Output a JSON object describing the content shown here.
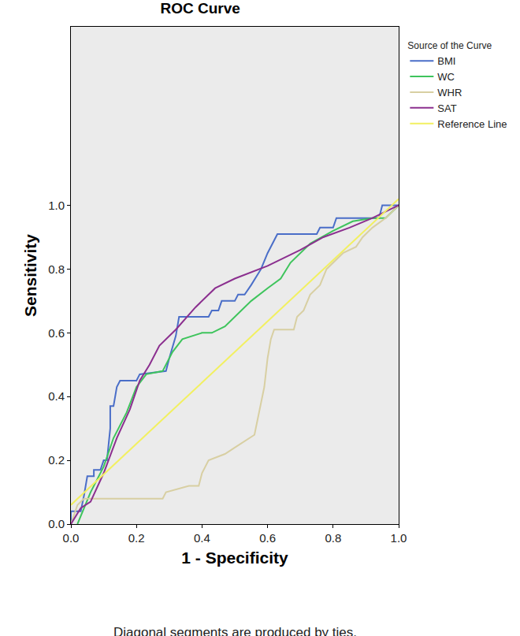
{
  "chart_data": {
    "type": "line",
    "title": "ROC Curve",
    "x_label": "1 - Specificity",
    "y_label": "Sensitivity",
    "legend_title": "Source of the Curve",
    "legend": "right",
    "grid": false,
    "xlim": [
      0,
      1
    ],
    "ylim": [
      0,
      1.56
    ],
    "xticks": [
      {
        "value": 0,
        "label": "0.0"
      },
      {
        "value": 0.2,
        "label": "0.2"
      },
      {
        "value": 0.4,
        "label": "0.4"
      },
      {
        "value": 0.6,
        "label": "0.6"
      },
      {
        "value": 0.8,
        "label": "0.8"
      },
      {
        "value": 1,
        "label": "1.0"
      }
    ],
    "yticks": [
      {
        "value": 0,
        "label": "0.0"
      },
      {
        "value": 0.2,
        "label": "0.2"
      },
      {
        "value": 0.4,
        "label": "0.4"
      },
      {
        "value": 0.6,
        "label": "0.6"
      },
      {
        "value": 0.8,
        "label": "0.8"
      },
      {
        "value": 1,
        "label": "1.0"
      }
    ],
    "annotations": [
      "Diagonal segments are produced by ties."
    ],
    "series": [
      {
        "name": "BMI",
        "color": "#4a6ec8",
        "line_style": "solid",
        "x": [
          0,
          0,
          0.03,
          0.04,
          0.05,
          0.07,
          0.07,
          0.09,
          0.1,
          0.11,
          0.12,
          0.12,
          0.13,
          0.14,
          0.15,
          0.2,
          0.21,
          0.29,
          0.3,
          0.32,
          0.33,
          0.42,
          0.43,
          0.45,
          0.46,
          0.5,
          0.51,
          0.53,
          0.55,
          0.58,
          0.6,
          0.62,
          0.63,
          0.75,
          0.76,
          0.8,
          0.81,
          0.94,
          0.95,
          1
        ],
        "values": [
          0,
          0.04,
          0.04,
          0.09,
          0.15,
          0.15,
          0.17,
          0.17,
          0.2,
          0.2,
          0.3,
          0.37,
          0.37,
          0.43,
          0.45,
          0.45,
          0.47,
          0.48,
          0.52,
          0.59,
          0.65,
          0.65,
          0.67,
          0.67,
          0.7,
          0.7,
          0.72,
          0.72,
          0.75,
          0.8,
          0.85,
          0.89,
          0.91,
          0.91,
          0.93,
          0.93,
          0.96,
          0.96,
          1,
          1
        ]
      },
      {
        "name": "WC",
        "color": "#3ec45c",
        "line_style": "solid",
        "x": [
          0.02,
          0.04,
          0.06,
          0.1,
          0.13,
          0.17,
          0.2,
          0.23,
          0.28,
          0.31,
          0.34,
          0.4,
          0.43,
          0.47,
          0.5,
          0.55,
          0.6,
          0.64,
          0.67,
          0.73,
          0.8,
          0.86,
          0.92,
          0.96,
          1
        ],
        "values": [
          0,
          0.05,
          0.1,
          0.18,
          0.27,
          0.35,
          0.43,
          0.47,
          0.48,
          0.54,
          0.58,
          0.6,
          0.6,
          0.62,
          0.65,
          0.7,
          0.74,
          0.77,
          0.82,
          0.88,
          0.92,
          0.95,
          0.96,
          0.96,
          1
        ]
      },
      {
        "name": "WHR",
        "color": "#d8cfa2",
        "line_style": "solid",
        "x": [
          0,
          0.02,
          0.04,
          0.28,
          0.29,
          0.36,
          0.39,
          0.4,
          0.42,
          0.47,
          0.5,
          0.53,
          0.56,
          0.57,
          0.59,
          0.6,
          0.61,
          0.62,
          0.68,
          0.69,
          0.71,
          0.73,
          0.76,
          0.78,
          0.8,
          0.83,
          0.87,
          0.89,
          0.92,
          0.96,
          0.98,
          1
        ],
        "values": [
          0,
          0.06,
          0.08,
          0.08,
          0.1,
          0.12,
          0.12,
          0.16,
          0.2,
          0.22,
          0.24,
          0.26,
          0.28,
          0.33,
          0.43,
          0.52,
          0.58,
          0.61,
          0.61,
          0.65,
          0.67,
          0.72,
          0.75,
          0.8,
          0.82,
          0.85,
          0.87,
          0.9,
          0.93,
          0.96,
          0.98,
          1
        ]
      },
      {
        "name": "SAT",
        "color": "#8b2f8f",
        "line_style": "solid",
        "x": [
          0,
          0.03,
          0.06,
          0.1,
          0.14,
          0.18,
          0.21,
          0.24,
          0.27,
          0.32,
          0.38,
          0.44,
          0.5,
          0.6,
          0.7,
          0.77,
          0.85,
          0.92,
          1
        ],
        "values": [
          0,
          0.05,
          0.07,
          0.16,
          0.27,
          0.36,
          0.45,
          0.5,
          0.56,
          0.61,
          0.68,
          0.74,
          0.77,
          0.81,
          0.86,
          0.9,
          0.93,
          0.96,
          1
        ]
      },
      {
        "name": "Reference Line",
        "color": "#f2f060",
        "line_style": "solid",
        "x": [
          0,
          1
        ],
        "values": [
          0.06,
          1.02
        ]
      }
    ]
  }
}
